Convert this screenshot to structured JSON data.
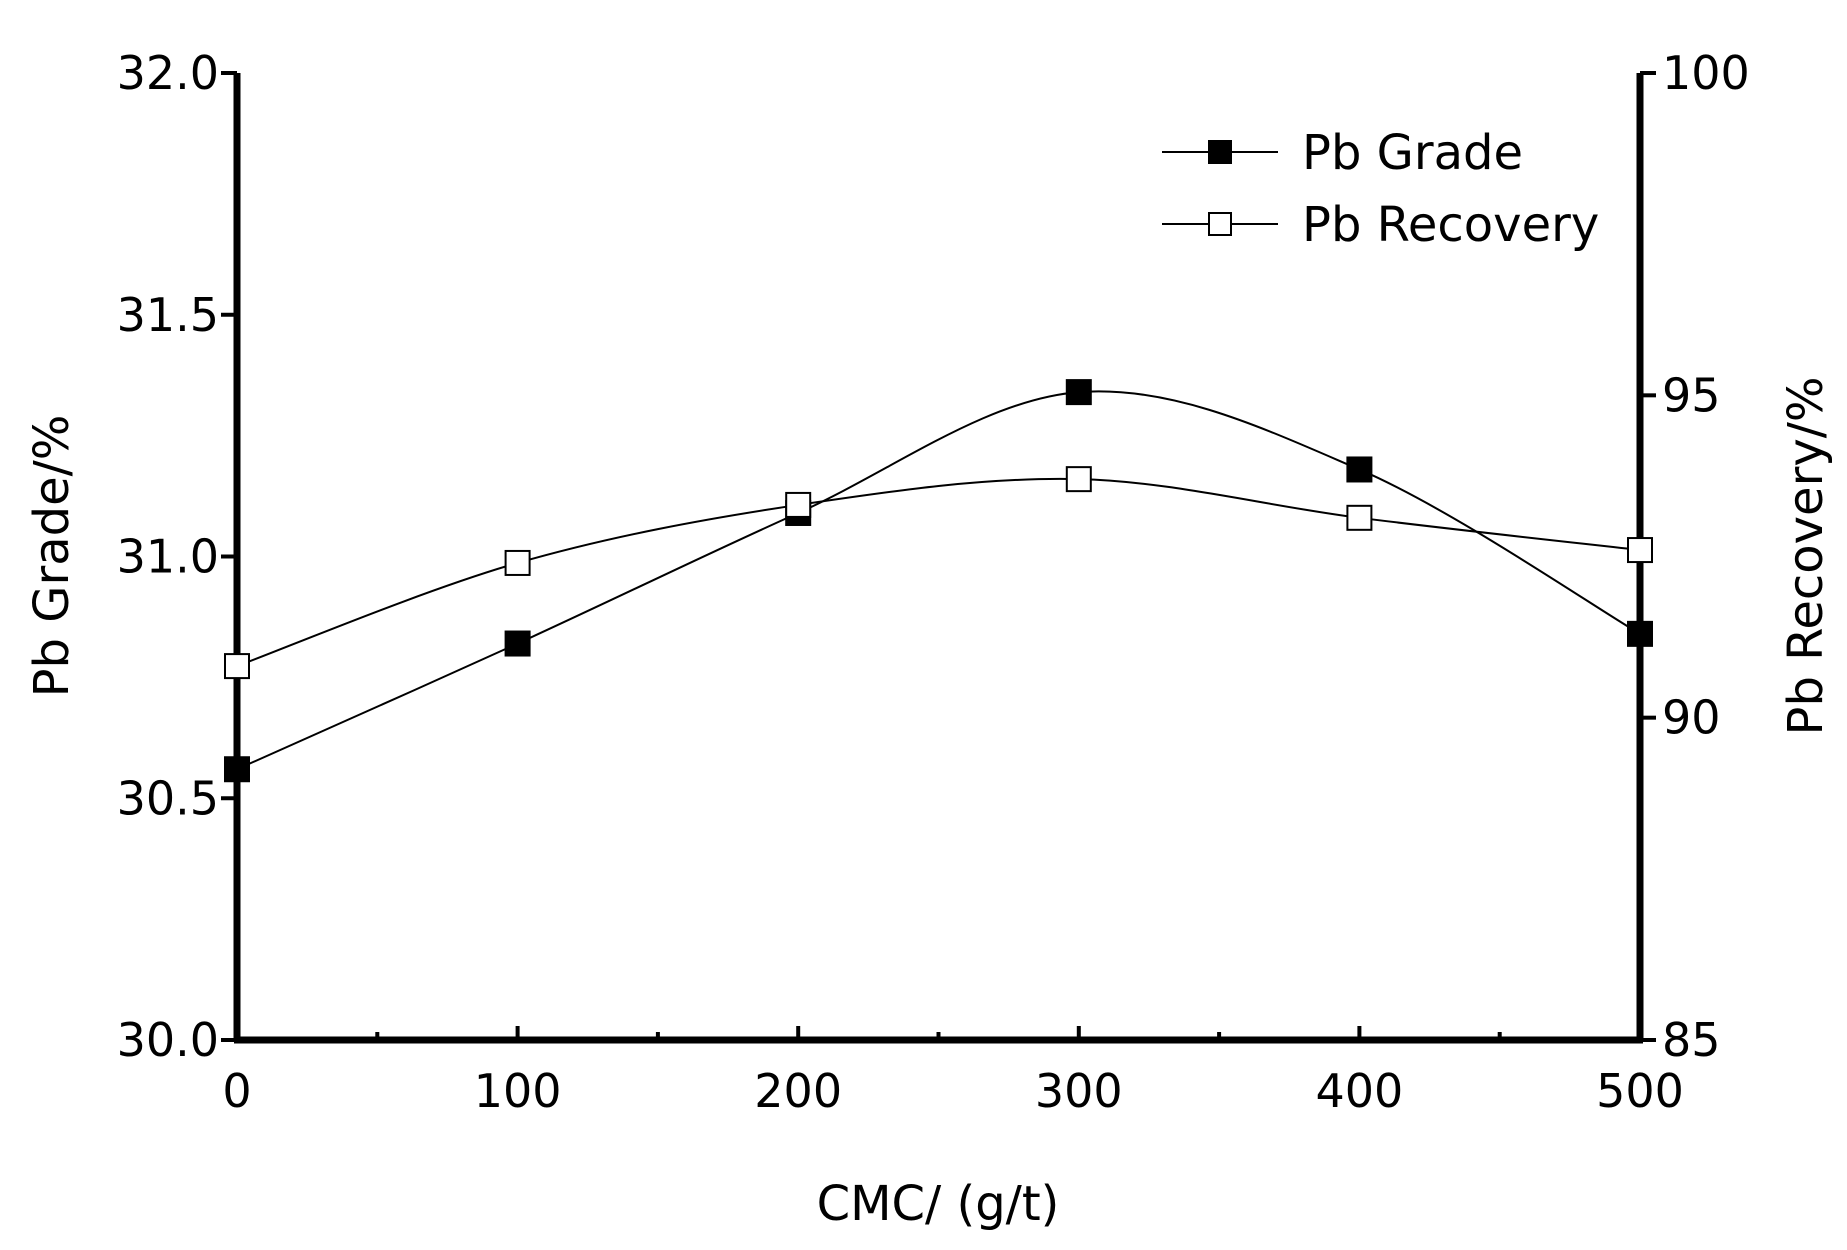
{
  "chart_data": {
    "type": "line",
    "title": "",
    "xlabel": "CMC/  (g/t)",
    "ylabel_left": "Pb Grade/%",
    "ylabel_right": "Pb Recovery/%",
    "xlim": [
      0,
      500
    ],
    "ylim_left": [
      30.0,
      32.0
    ],
    "ylim_right": [
      85,
      100
    ],
    "x_ticks": [
      "0",
      "100",
      "200",
      "300",
      "400",
      "500"
    ],
    "y_left_ticks": [
      "30.0",
      "30.5",
      "31.0",
      "31.5",
      "32.0"
    ],
    "y_right_ticks": [
      "85",
      "90",
      "95",
      "100"
    ],
    "x": [
      0,
      100,
      200,
      300,
      400,
      500
    ],
    "series": [
      {
        "name": "Pb Grade",
        "axis": "left",
        "marker": "filled-square",
        "values": [
          30.56,
          30.82,
          31.09,
          31.34,
          31.18,
          30.84
        ]
      },
      {
        "name": "Pb Recovery",
        "axis": "right",
        "marker": "open-square",
        "values": [
          90.8,
          92.4,
          93.3,
          93.7,
          93.1,
          92.6
        ]
      }
    ],
    "legend_position": "top-right",
    "grid": false,
    "line_color": "#000000"
  }
}
